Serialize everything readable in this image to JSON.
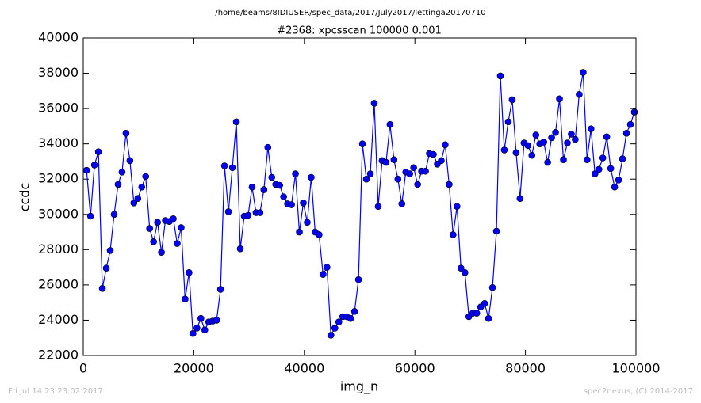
{
  "chart_data": {
    "type": "line",
    "title": "/home/beams/8IDIUSER/spec_data/2017/July2017/lettinga20170710",
    "subtitle": "#2368: xpcsscan 100000 0.001",
    "x_label": "img_n",
    "y_label": "ccdc",
    "footer_left": "Fri Jul 14 23:23:02 2017",
    "footer_right": "spec2nexus, (C) 2014-2017",
    "xlim": [
      0,
      100000
    ],
    "xticks": [
      0,
      20000,
      40000,
      60000,
      80000,
      100000
    ],
    "ylim": [
      22000,
      40000
    ],
    "yticks": [
      22000,
      24000,
      26000,
      28000,
      30000,
      32000,
      34000,
      36000,
      38000,
      40000
    ],
    "grid": false,
    "x": [
      600,
      1313,
      2026,
      2739,
      3452,
      4165,
      4878,
      5591,
      6304,
      7017,
      7730,
      8443,
      9156,
      9869,
      10582,
      11295,
      12008,
      12721,
      13434,
      14147,
      14860,
      15573,
      16286,
      16999,
      17712,
      18425,
      19138,
      19851,
      20564,
      21277,
      21990,
      22703,
      23416,
      24129,
      24842,
      25555,
      26268,
      26981,
      27694,
      28407,
      29120,
      29833,
      30546,
      31259,
      31972,
      32685,
      33398,
      34111,
      34824,
      35537,
      36250,
      36963,
      37676,
      38389,
      39102,
      39815,
      40528,
      41241,
      41954,
      42667,
      43380,
      44093,
      44806,
      45519,
      46232,
      46945,
      47658,
      48371,
      49084,
      49797,
      50510,
      51223,
      51936,
      52649,
      53362,
      54075,
      54788,
      55501,
      56214,
      56927,
      57640,
      58353,
      59066,
      59779,
      60492,
      61205,
      61918,
      62631,
      63344,
      64057,
      64770,
      65483,
      66196,
      66909,
      67622,
      68335,
      69048,
      69761,
      70474,
      71187,
      71900,
      72613,
      73326,
      74039,
      74752,
      75465,
      76178,
      76891,
      77604,
      78317,
      79030,
      79743,
      80456,
      81169,
      81882,
      82595,
      83308,
      84021,
      84734,
      85447,
      86160,
      86873,
      87586,
      88299,
      89012,
      89725,
      90438,
      91151,
      91864,
      92577,
      93290,
      94003,
      94716,
      95429,
      96142,
      96855,
      97568,
      98281,
      98994,
      99707
    ],
    "series": [
      {
        "color": "#0000ff",
        "values": [
          32500,
          29900,
          32800,
          33550,
          25800,
          26950,
          27950,
          30000,
          31700,
          32400,
          34600,
          33050,
          30650,
          30900,
          31550,
          32150,
          29200,
          28450,
          29550,
          27850,
          29650,
          29600,
          29750,
          28350,
          29250,
          25200,
          26700,
          23250,
          23550,
          24100,
          23450,
          23900,
          23950,
          24000,
          25750,
          32750,
          30150,
          32650,
          35250,
          28050,
          29900,
          29950,
          31550,
          30100,
          30100,
          31400,
          33800,
          32100,
          31700,
          31650,
          31000,
          30600,
          30550,
          32300,
          29000,
          30650,
          29550,
          32100,
          29000,
          28850,
          26600,
          27000,
          23150,
          23550,
          23900,
          24200,
          24200,
          24100,
          24500,
          26300,
          34000,
          32000,
          32300,
          36300,
          30450,
          33050,
          32950,
          35100,
          33100,
          32000,
          30600,
          32400,
          32300,
          32650,
          31700,
          32450,
          32450,
          33450,
          33400,
          32850,
          33050,
          33950,
          31700,
          28850,
          30450,
          26950,
          26700,
          24200,
          24400,
          24400,
          24750,
          24950,
          24100,
          25850,
          29050,
          37850,
          33650,
          35250,
          36500,
          33500,
          30900,
          34050,
          33900,
          33350,
          34500,
          34000,
          34100,
          32950,
          34350,
          34650,
          36550,
          33100,
          34050,
          34550,
          34250,
          36800,
          38050,
          33100,
          34850,
          32300,
          32550,
          33200,
          34400,
          32600,
          31550,
          31950,
          33150,
          34600,
          35100,
          35800
        ]
      }
    ]
  }
}
